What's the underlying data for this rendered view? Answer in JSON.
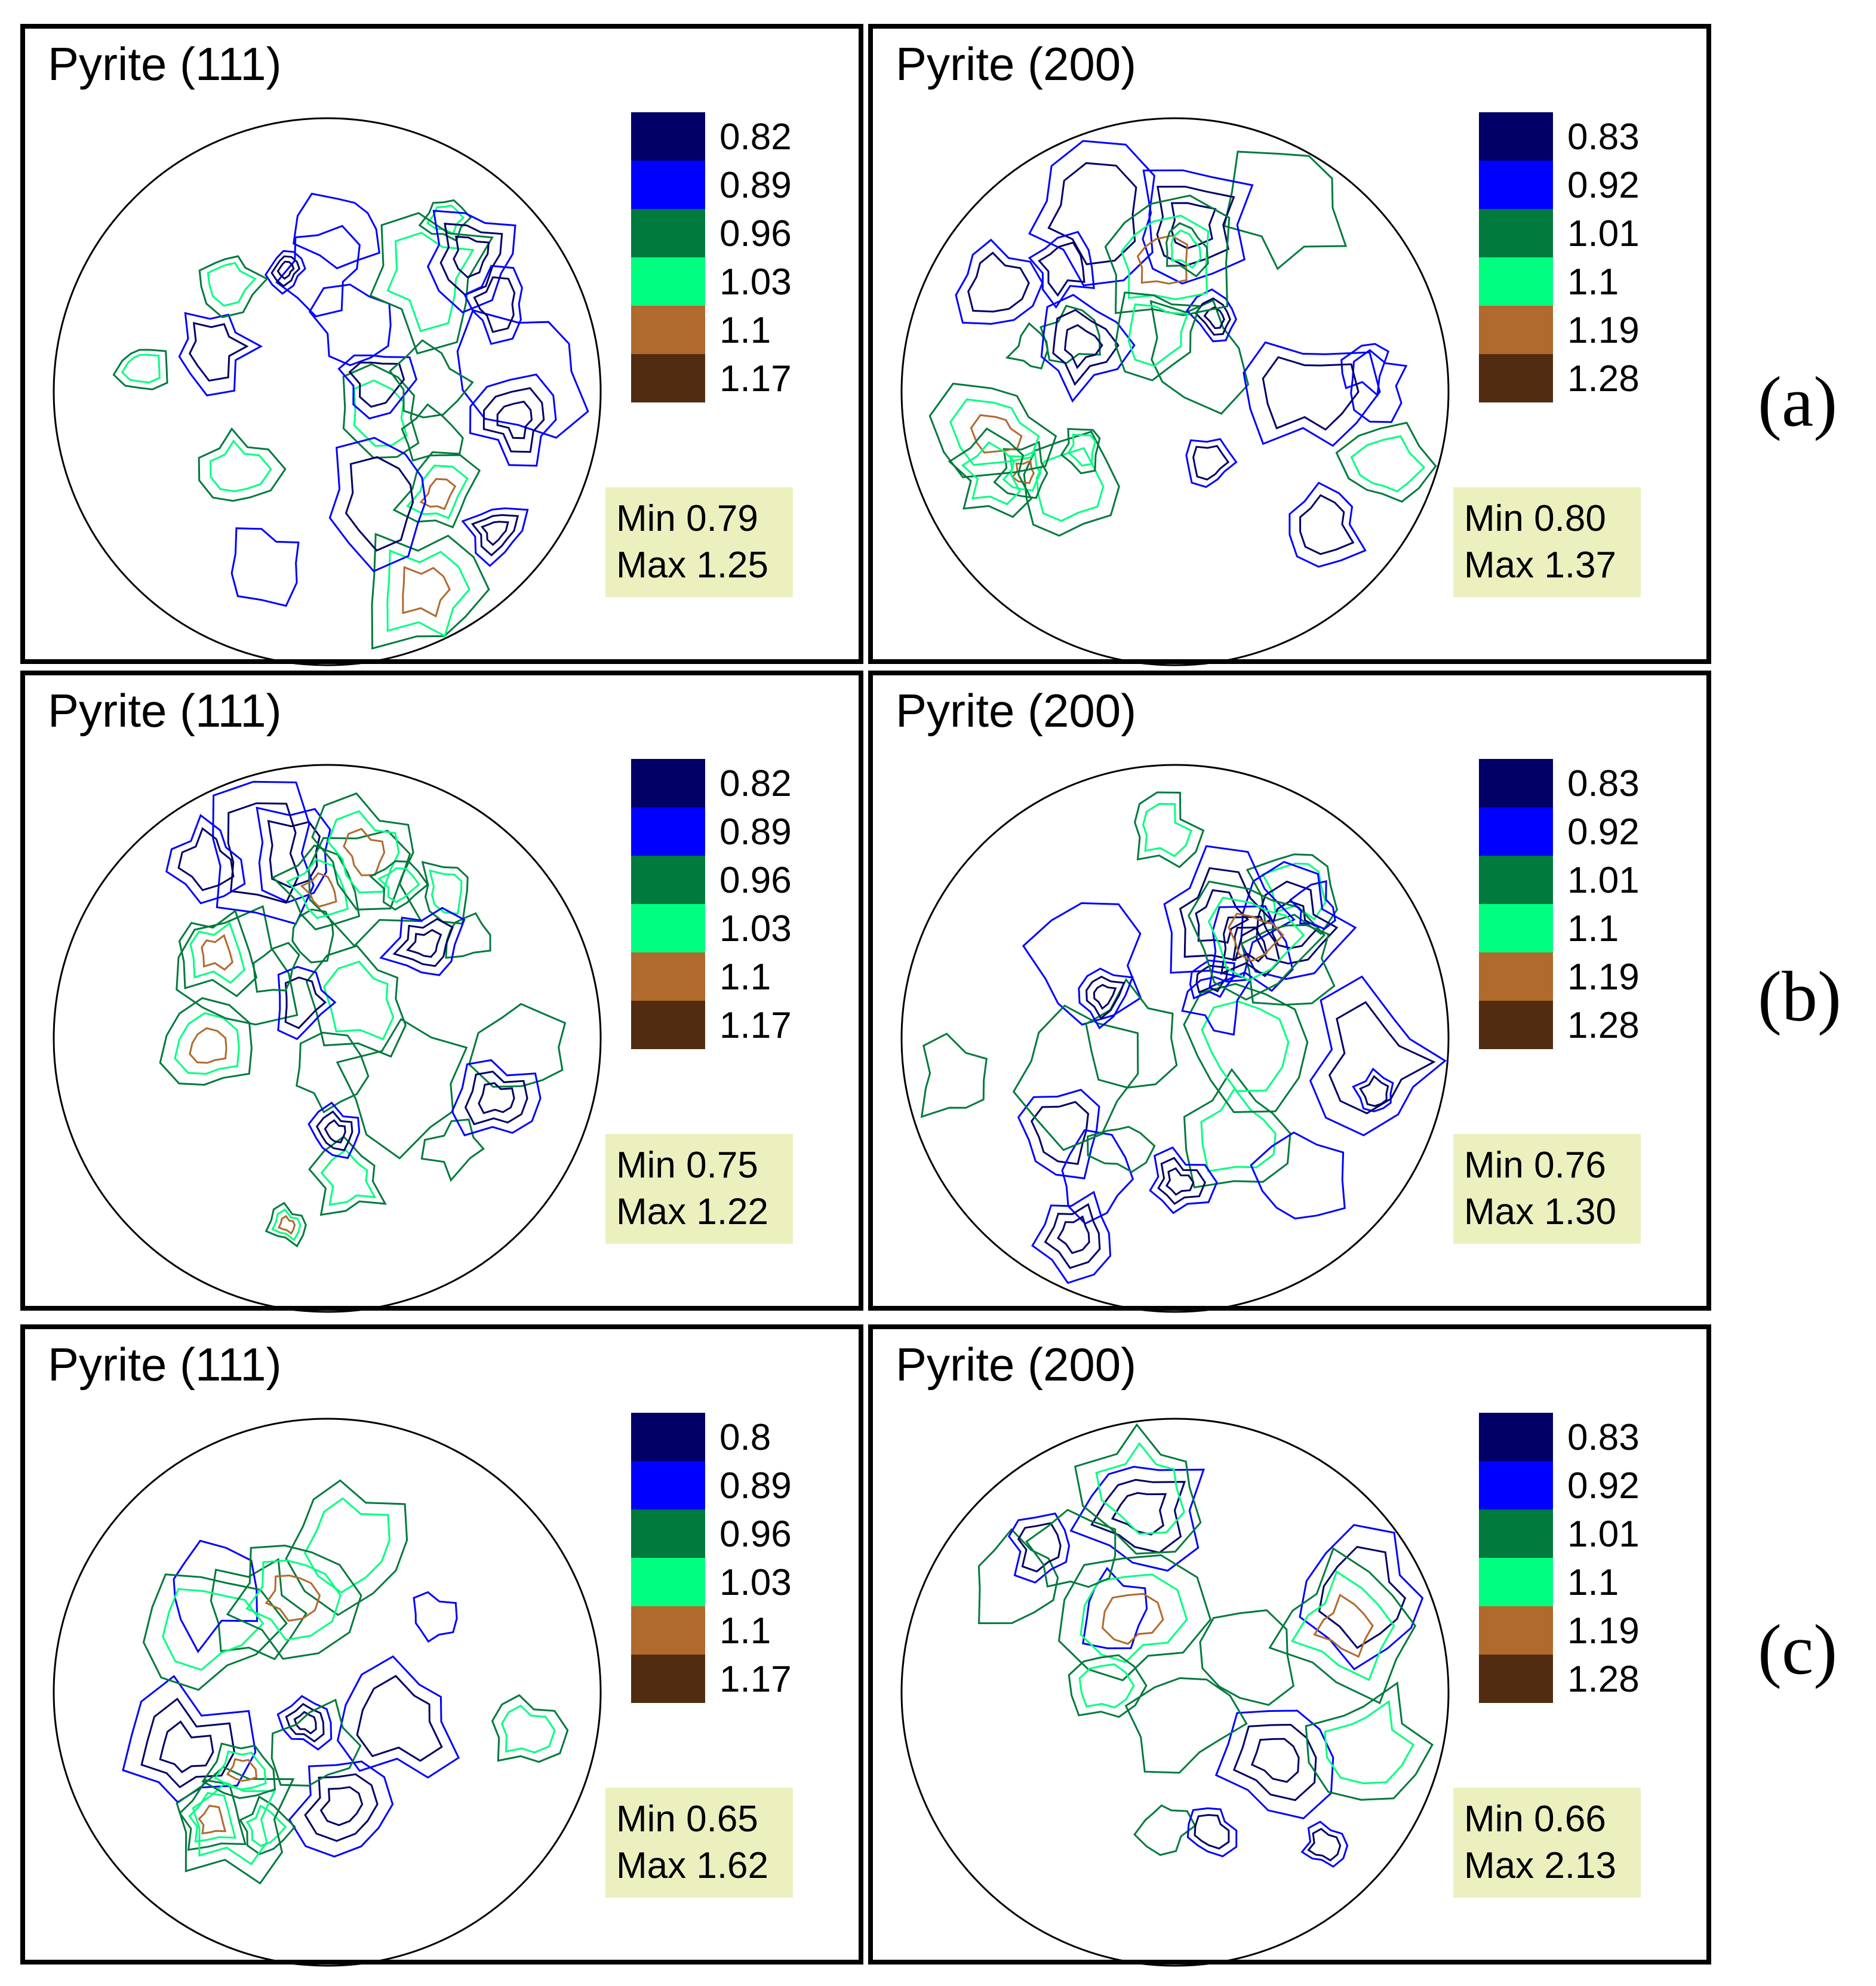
{
  "rows": [
    {
      "label": "(a)",
      "panels": [
        {
          "title": "Pyrite (111)",
          "levels": [
            "0.82",
            "0.89",
            "0.96",
            "1.03",
            "1.1",
            "1.17"
          ],
          "min": "Min 0.79",
          "max": "Max 1.25"
        },
        {
          "title": "Pyrite (200)",
          "levels": [
            "0.83",
            "0.92",
            "1.01",
            "1.1",
            "1.19",
            "1.28"
          ],
          "min": "Min 0.80",
          "max": "Max 1.37"
        }
      ]
    },
    {
      "label": "(b)",
      "panels": [
        {
          "title": "Pyrite (111)",
          "levels": [
            "0.82",
            "0.89",
            "0.96",
            "1.03",
            "1.1",
            "1.17"
          ],
          "min": "Min 0.75",
          "max": "Max 1.22"
        },
        {
          "title": "Pyrite (200)",
          "levels": [
            "0.83",
            "0.92",
            "1.01",
            "1.1",
            "1.19",
            "1.28"
          ],
          "min": "Min 0.76",
          "max": "Max 1.30"
        }
      ]
    },
    {
      "label": "(c)",
      "panels": [
        {
          "title": "Pyrite (111)",
          "levels": [
            "0.8",
            "0.89",
            "0.96",
            "1.03",
            "1.1",
            "1.17"
          ],
          "min": "Min 0.65",
          "max": "Max 1.62"
        },
        {
          "title": "Pyrite (200)",
          "levels": [
            "0.83",
            "0.92",
            "1.01",
            "1.1",
            "1.19",
            "1.28"
          ],
          "min": "Min 0.66",
          "max": "Max 2.13"
        }
      ]
    }
  ],
  "level_colors": [
    "#000066",
    "#0000ff",
    "#007a3d",
    "#00ff80",
    "#b06a2e",
    "#512c10"
  ],
  "chart_data": {
    "type": "contour",
    "chart_kind": "pole-figure",
    "panel_count": 6,
    "legend_placement": "top-right",
    "grid": false
  }
}
